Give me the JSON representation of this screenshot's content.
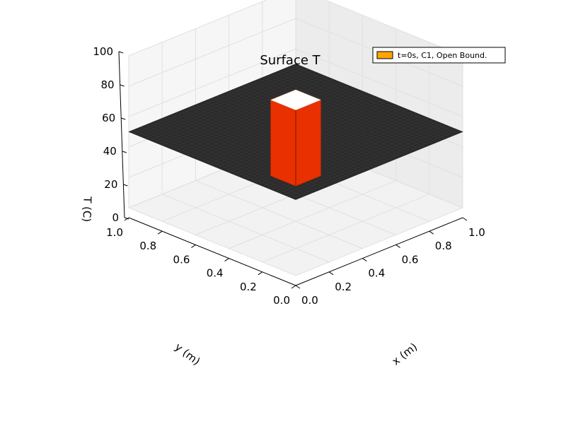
{
  "chart_data": {
    "type": "surface3d",
    "title": "Surface T",
    "xlabel": "x (m)",
    "ylabel": "y (m)",
    "zlabel": "T (C)",
    "xlim": [
      0.0,
      1.0
    ],
    "ylim": [
      0.0,
      1.0
    ],
    "zlim": [
      0,
      100
    ],
    "x_ticks": [
      "0.0",
      "0.2",
      "0.4",
      "0.6",
      "0.8",
      "1.0"
    ],
    "y_ticks": [
      "0.0",
      "0.2",
      "0.4",
      "0.6",
      "0.8",
      "1.0"
    ],
    "z_ticks": [
      "0",
      "20",
      "40",
      "60",
      "80",
      "100"
    ],
    "grid": true,
    "legend": {
      "position": "top-right",
      "entries": [
        "t=0s, C1, Open Bound."
      ]
    },
    "series": [
      {
        "name": "t=0s, C1, Open Bound.",
        "base_value": 50,
        "peak_value": 100,
        "peak_region": {
          "x": [
            0.1,
            0.25
          ],
          "y": [
            0.1,
            0.25
          ]
        },
        "colors": {
          "surface": "#2b2b2b",
          "peak_top": "#ffffff",
          "peak_side": "#e83000",
          "peak_dark": "#b82000",
          "legend_swatch": "#ffa500"
        }
      }
    ]
  }
}
